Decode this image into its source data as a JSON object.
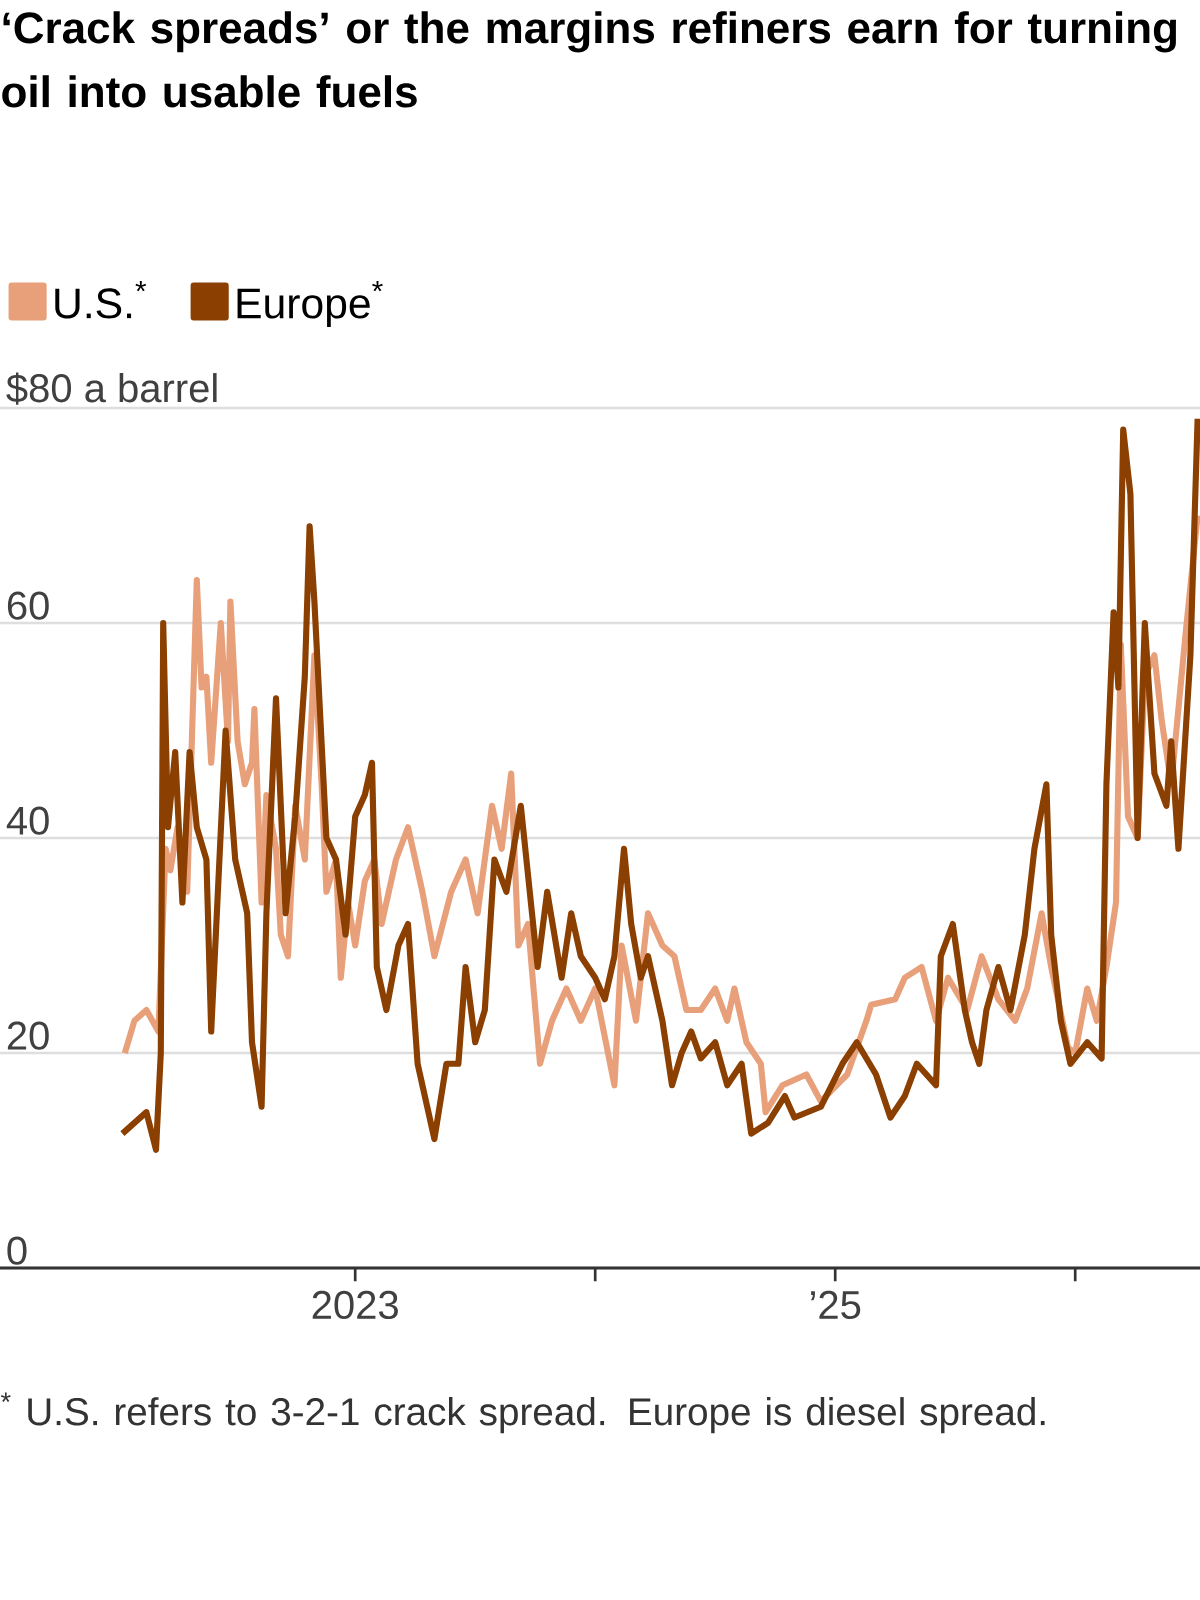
{
  "chart_data": {
    "type": "line",
    "title": "‘Crack spreads’ or the margins refiners earn for turning oil into usable fuels",
    "xlim": [
      2021.52,
      2026.52
    ],
    "xticks": [
      {
        "value": 2023,
        "label": "2023"
      },
      {
        "value": 2024,
        "label": null
      },
      {
        "value": 2025,
        "label": "’25"
      },
      {
        "value": 2026,
        "label": null
      }
    ],
    "ylim": [
      0,
      80
    ],
    "yticks": [
      0,
      20,
      40,
      60,
      {
        "value": 80,
        "label": "$80 a barrel"
      }
    ],
    "grid": "y",
    "legend": "top left",
    "series": [
      {
        "name": "U.S.$^{*}$",
        "color": "#e8a07a",
        "x": [
          2022.04,
          2022.08,
          2022.13,
          2022.18,
          2022.21,
          2022.23,
          2022.26,
          2022.3,
          2022.34,
          2022.36,
          2022.38,
          2022.4,
          2022.44,
          2022.47,
          2022.48,
          2022.51,
          2022.54,
          2022.57,
          2022.58,
          2022.61,
          2022.63,
          2022.67,
          2022.69,
          2022.72,
          2022.75,
          2022.79,
          2022.83,
          2022.86,
          2022.88,
          2022.92,
          2022.94,
          2022.97,
          2023.0,
          2023.04,
          2023.08,
          2023.11,
          2023.17,
          2023.22,
          2023.28,
          2023.33,
          2023.4,
          2023.46,
          2023.51,
          2023.57,
          2023.61,
          2023.65,
          2023.68,
          2023.72,
          2023.77,
          2023.82,
          2023.88,
          2023.94,
          2024.0,
          2024.08,
          2024.11,
          2024.17,
          2024.22,
          2024.28,
          2024.33,
          2024.38,
          2024.44,
          2024.5,
          2024.55,
          2024.58,
          2024.63,
          2024.69,
          2024.71,
          2024.78,
          2024.88,
          2024.94,
          2025.05,
          2025.13,
          2025.15,
          2025.25,
          2025.29,
          2025.36,
          2025.42,
          2025.47,
          2025.55,
          2025.61,
          2025.68,
          2025.75,
          2025.8,
          2025.86,
          2025.9,
          2025.97,
          2026.0,
          2026.05,
          2026.09,
          2026.13,
          2026.17,
          2026.19,
          2026.22,
          2026.26,
          2026.29,
          2026.33,
          2026.36,
          2026.4,
          2026.46,
          2026.51
        ],
        "values": [
          20,
          23,
          24,
          22,
          39,
          37,
          41,
          35,
          64,
          54,
          55,
          47,
          60,
          49,
          62,
          49,
          45,
          47,
          52,
          34,
          44,
          39,
          31,
          29,
          43,
          38,
          57,
          45,
          35,
          38,
          27,
          34,
          30,
          36,
          38,
          32,
          38,
          41,
          35,
          29,
          35,
          38,
          33,
          43,
          39,
          46,
          30,
          32,
          19,
          23,
          26,
          23,
          26,
          17,
          30,
          23,
          33,
          30,
          29,
          24,
          24,
          26,
          23,
          26,
          21,
          19,
          14.5,
          17,
          18,
          15.5,
          18,
          23,
          24.5,
          25,
          27,
          28,
          23,
          27,
          24,
          29,
          25,
          23,
          26,
          33,
          28,
          20.5,
          20,
          26,
          23,
          28,
          34,
          58,
          42,
          40,
          55,
          57,
          51,
          45,
          59,
          70
        ]
      },
      {
        "name": "Europe$^{*}$",
        "color": "#8b3f00",
        "x": [
          2022.03,
          2022.08,
          2022.13,
          2022.17,
          2022.19,
          2022.2,
          2022.22,
          2022.25,
          2022.28,
          2022.31,
          2022.34,
          2022.38,
          2022.4,
          2022.43,
          2022.46,
          2022.5,
          2022.55,
          2022.57,
          2022.61,
          2022.63,
          2022.67,
          2022.71,
          2022.75,
          2022.79,
          2022.81,
          2022.83,
          2022.88,
          2022.92,
          2022.96,
          2023.0,
          2023.04,
          2023.07,
          2023.09,
          2023.13,
          2023.18,
          2023.22,
          2023.26,
          2023.33,
          2023.38,
          2023.43,
          2023.46,
          2023.5,
          2023.54,
          2023.58,
          2023.63,
          2023.69,
          2023.76,
          2023.8,
          2023.86,
          2023.9,
          2023.94,
          2024.0,
          2024.04,
          2024.08,
          2024.12,
          2024.15,
          2024.19,
          2024.22,
          2024.28,
          2024.32,
          2024.36,
          2024.4,
          2024.44,
          2024.5,
          2024.55,
          2024.61,
          2024.65,
          2024.72,
          2024.79,
          2024.83,
          2024.94,
          2025.03,
          2025.09,
          2025.17,
          2025.23,
          2025.29,
          2025.34,
          2025.42,
          2025.44,
          2025.49,
          2025.54,
          2025.57,
          2025.6,
          2025.63,
          2025.68,
          2025.73,
          2025.79,
          2025.83,
          2025.88,
          2025.9,
          2025.94,
          2025.98,
          2026.05,
          2026.11,
          2026.13,
          2026.16,
          2026.18,
          2026.2,
          2026.23,
          2026.26,
          2026.29,
          2026.33,
          2026.38,
          2026.4,
          2026.43,
          2026.48,
          2026.51
        ],
        "values": [
          12.5,
          13.5,
          14.5,
          11,
          20,
          60,
          41,
          48,
          34,
          48,
          41,
          38,
          22,
          36,
          50,
          38,
          33,
          21,
          15,
          33,
          53,
          33,
          42,
          55,
          69,
          62,
          40,
          38,
          31,
          42,
          44,
          47,
          28,
          24,
          30,
          32,
          19,
          12,
          19,
          19,
          28,
          21,
          24,
          38,
          35,
          43,
          28,
          35,
          27,
          33,
          29,
          27,
          25,
          29,
          39,
          32,
          27,
          29,
          23,
          17,
          20,
          22,
          19.5,
          21,
          17,
          19,
          12.5,
          13.5,
          16,
          14,
          15,
          19,
          21,
          18,
          14,
          16,
          19,
          17,
          29,
          32,
          24,
          21,
          19,
          24,
          28,
          24,
          31,
          39,
          45,
          31,
          23,
          19,
          21,
          19.5,
          45,
          61,
          54,
          78,
          72,
          40,
          60,
          46,
          43,
          49,
          39,
          57,
          79
        ]
      }
    ],
    "annotations": [
      "$^{*}$ U.S. refers to 3-2-1 crack spread. Europe is diesel spread."
    ]
  }
}
